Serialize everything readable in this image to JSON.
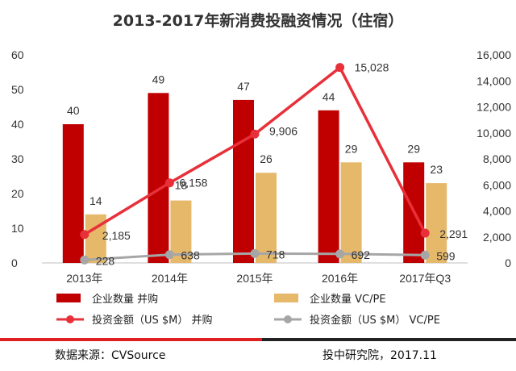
{
  "chart_data": {
    "type": "bar",
    "title": "2013-2017年新消费投融资情况（住宿）",
    "categories": [
      "2013年",
      "2014年",
      "2015年",
      "2016年",
      "2017年Q3"
    ],
    "left_ylim": [
      0,
      60
    ],
    "left_ticks": [
      0,
      10,
      20,
      30,
      40,
      50,
      60
    ],
    "right_ylim": [
      0,
      16000
    ],
    "right_ticks": [
      "0",
      "2,000",
      "4,000",
      "6,000",
      "8,000",
      "10,000",
      "12,000",
      "14,000",
      "16,000"
    ],
    "grid": false,
    "legend_position": "bottom",
    "series": [
      {
        "name": "企业数量 并购",
        "kind": "bar",
        "axis": "left",
        "color": "#c00000",
        "values": [
          40,
          49,
          47,
          44,
          29
        ],
        "labels": [
          "40",
          "49",
          "47",
          "44",
          "29"
        ]
      },
      {
        "name": "企业数量 VC/PE",
        "kind": "bar",
        "axis": "left",
        "color": "#e6b86a",
        "values": [
          14,
          18,
          26,
          29,
          23
        ],
        "labels": [
          "14",
          "18",
          "26",
          "29",
          "23"
        ]
      },
      {
        "name": "投资金额（US $M） 并购",
        "kind": "line",
        "axis": "right",
        "color": "#e8303a",
        "values": [
          2185,
          6158,
          9906,
          15028,
          2291
        ],
        "labels": [
          "2,185",
          "6,158",
          "9,906",
          "15,028",
          "2,291"
        ]
      },
      {
        "name": "投资金额（US $M） VC/PE",
        "kind": "line",
        "axis": "right",
        "color": "#a6a6a6",
        "values": [
          228,
          638,
          718,
          692,
          599
        ],
        "labels": [
          "228",
          "638",
          "718",
          "692",
          "599"
        ]
      }
    ]
  },
  "footer": {
    "source": "数据来源：CVSource",
    "publisher": "投中研究院，2017.11"
  },
  "colors": {
    "footer_line_red": "#e02020",
    "footer_line_dark": "#222222"
  }
}
